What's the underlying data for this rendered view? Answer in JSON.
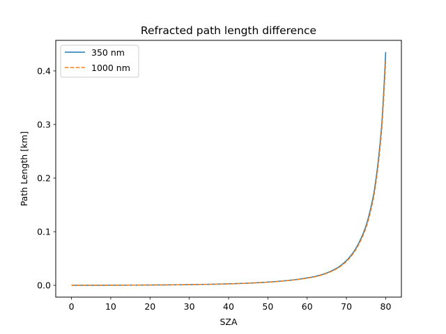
{
  "chart_data": {
    "type": "line",
    "title": "Refracted path length difference",
    "xlabel": "SZA",
    "ylabel": "Path Length [km]",
    "xlim": [
      -4,
      84
    ],
    "ylim": [
      -0.022,
      0.457
    ],
    "x_ticks": [
      0,
      10,
      20,
      30,
      40,
      50,
      60,
      70,
      80
    ],
    "y_ticks": [
      0.0,
      0.1,
      0.2,
      0.3,
      0.4
    ],
    "x_tick_labels": [
      "0",
      "10",
      "20",
      "30",
      "40",
      "50",
      "60",
      "70",
      "80"
    ],
    "y_tick_labels": [
      "0.0",
      "0.1",
      "0.2",
      "0.3",
      "0.4"
    ],
    "legend": {
      "placement": "top-left"
    },
    "grid": false,
    "x": [
      0,
      10,
      20,
      30,
      40,
      45,
      50,
      55,
      60,
      62,
      64,
      66,
      68,
      70,
      72,
      74,
      75,
      76,
      77,
      78,
      79,
      80
    ],
    "series": [
      {
        "name": "350 nm",
        "color": "#1f77b4",
        "style": "solid",
        "values": [
          0.0,
          0.0002,
          0.0006,
          0.0013,
          0.0028,
          0.0041,
          0.006,
          0.009,
          0.0138,
          0.0165,
          0.0205,
          0.0262,
          0.034,
          0.046,
          0.064,
          0.092,
          0.111,
          0.138,
          0.172,
          0.225,
          0.3,
          0.435
        ]
      },
      {
        "name": "1000 nm",
        "color": "#ff7f0e",
        "style": "dashed",
        "values": [
          0.0,
          0.0002,
          0.0006,
          0.0013,
          0.0027,
          0.004,
          0.0058,
          0.0087,
          0.0133,
          0.0159,
          0.0198,
          0.0253,
          0.0328,
          0.0444,
          0.0618,
          0.0889,
          0.107,
          0.133,
          0.166,
          0.217,
          0.29,
          0.418
        ]
      }
    ]
  }
}
